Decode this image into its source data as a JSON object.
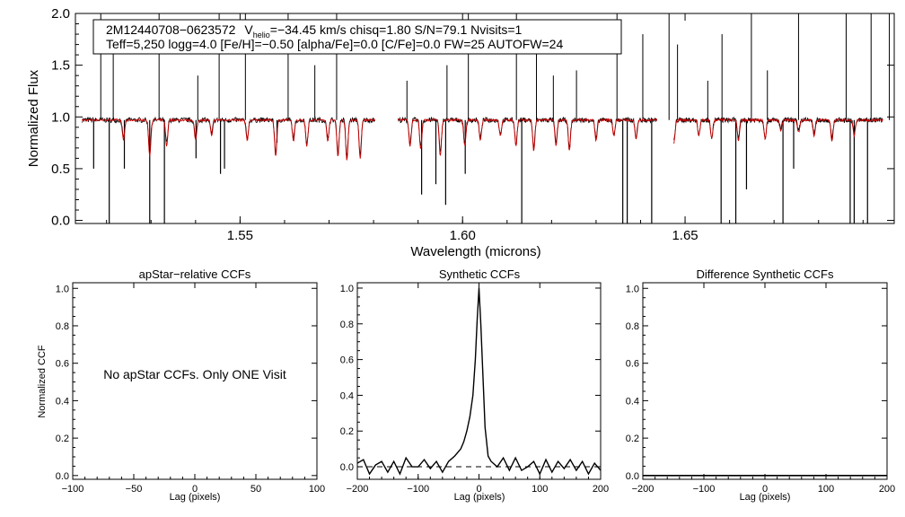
{
  "chart_data": [
    {
      "id": "spectrum",
      "type": "line",
      "xlabel": "Wavelength (microns)",
      "ylabel": "Normalized Flux",
      "xlim": [
        1.513,
        1.697
      ],
      "ylim": [
        -0.03,
        2.0
      ],
      "xticks": [
        1.55,
        1.6,
        1.65
      ],
      "xtick_labels": [
        "1.55",
        "1.60",
        "1.65"
      ],
      "yticks": [
        0.0,
        0.5,
        1.0,
        1.5,
        2.0
      ],
      "ytick_labels": [
        "0.0",
        "0.5",
        "1.0",
        "1.5",
        "2.0"
      ],
      "chips": [
        [
          1.5145,
          1.5803
        ],
        [
          1.5855,
          1.6437
        ],
        [
          1.6475,
          1.6944
        ]
      ],
      "series": [
        {
          "name": "observed",
          "color": "#000000",
          "continuum": 0.97,
          "spikes": [
            1.5187,
            1.5215,
            1.5318,
            1.5405,
            1.5453,
            1.5512,
            1.5608,
            1.5668,
            1.5717,
            1.5875,
            1.5965,
            1.6013,
            1.6121,
            1.6166,
            1.6204,
            1.6256,
            1.6347,
            1.6405,
            1.6464,
            1.6483,
            1.6551,
            1.6583,
            1.6649,
            1.6685,
            1.6755,
            1.6862,
            1.6918,
            1.6959
          ],
          "spike_heights": [
            2.0,
            1.9,
            2.0,
            1.4,
            2.0,
            2.0,
            2.0,
            1.5,
            2.0,
            1.35,
            1.5,
            2.0,
            2.0,
            1.8,
            1.4,
            1.45,
            2.0,
            1.8,
            2.0,
            1.7,
            1.35,
            1.8,
            2.0,
            1.45,
            2.0,
            2.0,
            2.0,
            2.0
          ],
          "dips": [
            1.5171,
            1.5206,
            1.524,
            1.5297,
            1.533,
            1.5401,
            1.5456,
            1.5465,
            1.5583,
            1.5908,
            1.594,
            1.5962,
            1.6006,
            1.6133,
            1.636,
            1.637,
            1.6425,
            1.6581,
            1.6614,
            1.6638,
            1.672,
            1.6744,
            1.6871,
            1.688,
            1.691
          ],
          "dip_depths": [
            0.5,
            -0.03,
            0.5,
            -0.03,
            -0.03,
            0.6,
            0.45,
            0.5,
            0.75,
            0.25,
            0.35,
            0.15,
            0.45,
            -0.03,
            -0.03,
            -0.03,
            -0.03,
            -0.03,
            -0.03,
            0.3,
            -0.03,
            0.5,
            -0.03,
            -0.03,
            -0.03
          ]
        },
        {
          "name": "synthetic",
          "color": "#cc0000",
          "continuum": 0.97,
          "absorption_lines": [
            1.5238,
            1.5297,
            1.5335,
            1.54,
            1.5436,
            1.5516,
            1.558,
            1.562,
            1.565,
            1.5697,
            1.572,
            1.574,
            1.577,
            1.5882,
            1.5906,
            1.595,
            1.6005,
            1.604,
            1.6085,
            1.612,
            1.616,
            1.621,
            1.624,
            1.63,
            1.634,
            1.639,
            1.6475,
            1.6531,
            1.656,
            1.662,
            1.668,
            1.6715,
            1.6755,
            1.679,
            1.683,
            1.688
          ],
          "line_depths": [
            0.2,
            0.35,
            0.25,
            0.2,
            0.15,
            0.2,
            0.35,
            0.2,
            0.25,
            0.2,
            0.35,
            0.4,
            0.38,
            0.25,
            0.28,
            0.35,
            0.25,
            0.2,
            0.15,
            0.25,
            0.3,
            0.25,
            0.3,
            0.2,
            0.15,
            0.18,
            0.22,
            0.15,
            0.18,
            0.2,
            0.18,
            0.1,
            0.12,
            0.15,
            0.2,
            0.15
          ]
        }
      ],
      "annotations": {
        "line1_star": "2M12440708−0623572",
        "line1_v": "V",
        "line1_vsub": "helio",
        "line1_rest": "=−34.45 km/s  chisq=1.80  S/N=79.1  Nvisits=1",
        "line2": "Teff=5,250 logg=4.0 [Fe/H]=−0.50 [alpha/Fe]=0.0 [C/Fe]=0.0 FW=25 AUTOFW=24"
      }
    },
    {
      "id": "apstar-ccf",
      "type": "line",
      "title": "apStar−relative CCFs",
      "xlabel": "Lag (pixels)",
      "ylabel": "Normalized CCF",
      "xlim": [
        -100,
        100
      ],
      "ylim": [
        -0.02,
        1.03
      ],
      "xticks": [
        -100,
        -50,
        0,
        50,
        100
      ],
      "xtick_labels": [
        "−100",
        "−50",
        "0",
        "50",
        "100"
      ],
      "yticks": [
        0.0,
        0.2,
        0.4,
        0.6,
        0.8,
        1.0
      ],
      "ytick_labels": [
        "0.0",
        "0.2",
        "0.4",
        "0.6",
        "0.8",
        "1.0"
      ],
      "note": "No apStar CCFs.  Only ONE Visit",
      "series": []
    },
    {
      "id": "synthetic-ccf",
      "type": "line",
      "title": "Synthetic CCFs",
      "xlabel": "Lag (pixels)",
      "ylabel": "",
      "xlim": [
        -200,
        200
      ],
      "ylim": [
        -0.07,
        1.03
      ],
      "xticks": [
        -200,
        -100,
        0,
        100,
        200
      ],
      "xtick_labels": [
        "−200",
        "−100",
        "0",
        "100",
        "200"
      ],
      "yticks": [
        0.0,
        0.2,
        0.4,
        0.6,
        0.8,
        1.0
      ],
      "ytick_labels": [
        "0.0",
        "0.2",
        "0.4",
        "0.6",
        "0.8",
        "1.0"
      ],
      "series": [
        {
          "name": "ccf",
          "color": "#000000",
          "dash": false,
          "x": [
            -200,
            -190,
            -180,
            -170,
            -160,
            -150,
            -140,
            -130,
            -120,
            -110,
            -100,
            -90,
            -80,
            -70,
            -60,
            -50,
            -40,
            -30,
            -25,
            -20,
            -15,
            -10,
            -6,
            -3,
            0,
            3,
            6,
            10,
            15,
            20,
            30,
            40,
            50,
            60,
            70,
            80,
            90,
            100,
            110,
            120,
            130,
            140,
            150,
            160,
            170,
            180,
            190,
            200
          ],
          "y": [
            0.02,
            0.04,
            -0.04,
            0.01,
            0.03,
            -0.03,
            0.03,
            -0.04,
            0.05,
            0.0,
            0.0,
            0.04,
            -0.01,
            0.03,
            -0.03,
            0.03,
            0.06,
            0.1,
            0.14,
            0.2,
            0.28,
            0.4,
            0.6,
            0.82,
            1.0,
            0.8,
            0.55,
            0.22,
            0.06,
            0.03,
            0.0,
            0.05,
            -0.02,
            0.05,
            -0.02,
            0.0,
            0.03,
            -0.04,
            0.04,
            -0.03,
            0.03,
            -0.01,
            0.04,
            -0.02,
            0.03,
            -0.04,
            0.02,
            -0.02
          ]
        },
        {
          "name": "baseline",
          "color": "#000000",
          "dash": true,
          "x": [
            -200,
            200
          ],
          "y": [
            0.0,
            0.0
          ]
        }
      ]
    },
    {
      "id": "diff-ccf",
      "type": "line",
      "title": "Difference Synthetic CCFs",
      "xlabel": "Lag (pixels)",
      "ylabel": "",
      "xlim": [
        -200,
        200
      ],
      "ylim": [
        -0.02,
        1.03
      ],
      "xticks": [
        -200,
        -100,
        0,
        100,
        200
      ],
      "xtick_labels": [
        "−200",
        "−100",
        "0",
        "100",
        "200"
      ],
      "yticks": [
        0.0,
        0.2,
        0.4,
        0.6,
        0.8,
        1.0
      ],
      "ytick_labels": [
        "0.0",
        "0.2",
        "0.4",
        "0.6",
        "0.8",
        "1.0"
      ],
      "series": [
        {
          "name": "difference",
          "color": "#000000",
          "dash": false,
          "x": [
            -200,
            200
          ],
          "y": [
            0.0,
            0.0
          ]
        }
      ]
    }
  ]
}
